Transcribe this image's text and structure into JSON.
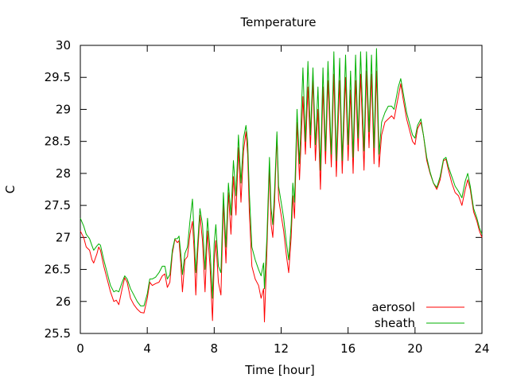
{
  "chart_data": {
    "type": "line",
    "title": "Temperature",
    "xlabel": "Time [hour]",
    "ylabel": "C",
    "xlim": [
      0,
      24
    ],
    "ylim": [
      25.5,
      30
    ],
    "xticks": [
      0,
      4,
      8,
      12,
      16,
      20,
      24
    ],
    "yticks": [
      25.5,
      26,
      26.5,
      27,
      27.5,
      28,
      28.5,
      29,
      29.5,
      30
    ],
    "xtick_labels": [
      "0",
      "4",
      "8",
      "12",
      "16",
      "20",
      "24"
    ],
    "ytick_labels": [
      "25.5",
      "26",
      "26.5",
      "27",
      "27.5",
      "28",
      "28.5",
      "29",
      "29.5",
      "30"
    ],
    "grid": false,
    "legend_position": "bottom-right",
    "series": [
      {
        "name": "aerosol",
        "color": "#ff0000",
        "points": [
          [
            0.0,
            27.1
          ],
          [
            0.2,
            27.0
          ],
          [
            0.35,
            26.85
          ],
          [
            0.55,
            26.8
          ],
          [
            0.7,
            26.65
          ],
          [
            0.8,
            26.6
          ],
          [
            1.0,
            26.75
          ],
          [
            1.1,
            26.85
          ],
          [
            1.2,
            26.8
          ],
          [
            1.4,
            26.55
          ],
          [
            1.6,
            26.35
          ],
          [
            1.8,
            26.15
          ],
          [
            2.0,
            26.0
          ],
          [
            2.15,
            26.02
          ],
          [
            2.3,
            25.95
          ],
          [
            2.5,
            26.2
          ],
          [
            2.65,
            26.37
          ],
          [
            2.8,
            26.3
          ],
          [
            3.0,
            26.05
          ],
          [
            3.2,
            25.95
          ],
          [
            3.4,
            25.88
          ],
          [
            3.6,
            25.83
          ],
          [
            3.8,
            25.82
          ],
          [
            4.0,
            26.05
          ],
          [
            4.15,
            26.3
          ],
          [
            4.3,
            26.25
          ],
          [
            4.5,
            26.28
          ],
          [
            4.7,
            26.3
          ],
          [
            4.9,
            26.4
          ],
          [
            5.05,
            26.43
          ],
          [
            5.2,
            26.22
          ],
          [
            5.35,
            26.3
          ],
          [
            5.5,
            26.75
          ],
          [
            5.65,
            26.97
          ],
          [
            5.8,
            26.92
          ],
          [
            5.9,
            26.95
          ],
          [
            6.0,
            26.6
          ],
          [
            6.1,
            26.15
          ],
          [
            6.25,
            26.65
          ],
          [
            6.4,
            26.7
          ],
          [
            6.55,
            27.05
          ],
          [
            6.7,
            27.25
          ],
          [
            6.8,
            26.8
          ],
          [
            6.9,
            26.1
          ],
          [
            7.0,
            26.7
          ],
          [
            7.15,
            27.35
          ],
          [
            7.3,
            26.95
          ],
          [
            7.45,
            26.15
          ],
          [
            7.6,
            27.1
          ],
          [
            7.75,
            26.55
          ],
          [
            7.9,
            25.7
          ],
          [
            8.0,
            26.6
          ],
          [
            8.1,
            26.95
          ],
          [
            8.25,
            26.3
          ],
          [
            8.4,
            26.1
          ],
          [
            8.55,
            27.55
          ],
          [
            8.7,
            26.6
          ],
          [
            8.85,
            27.7
          ],
          [
            9.0,
            27.05
          ],
          [
            9.15,
            27.95
          ],
          [
            9.3,
            27.35
          ],
          [
            9.45,
            28.4
          ],
          [
            9.6,
            27.55
          ],
          [
            9.75,
            28.35
          ],
          [
            9.9,
            28.65
          ],
          [
            10.0,
            28.3
          ],
          [
            10.1,
            27.4
          ],
          [
            10.25,
            26.55
          ],
          [
            10.45,
            26.35
          ],
          [
            10.65,
            26.25
          ],
          [
            10.8,
            26.05
          ],
          [
            10.95,
            26.2
          ],
          [
            11.0,
            25.68
          ],
          [
            11.15,
            26.8
          ],
          [
            11.3,
            28.1
          ],
          [
            11.4,
            27.2
          ],
          [
            11.5,
            27.0
          ],
          [
            11.6,
            27.5
          ],
          [
            11.75,
            28.6
          ],
          [
            11.85,
            27.6
          ],
          [
            12.0,
            27.35
          ],
          [
            12.15,
            27.1
          ],
          [
            12.3,
            26.75
          ],
          [
            12.45,
            26.45
          ],
          [
            12.6,
            27.0
          ],
          [
            12.7,
            27.65
          ],
          [
            12.8,
            27.3
          ],
          [
            12.95,
            28.8
          ],
          [
            13.1,
            27.9
          ],
          [
            13.3,
            29.2
          ],
          [
            13.45,
            28.3
          ],
          [
            13.6,
            29.35
          ],
          [
            13.75,
            28.4
          ],
          [
            13.9,
            29.45
          ],
          [
            14.05,
            28.2
          ],
          [
            14.2,
            29.0
          ],
          [
            14.35,
            27.75
          ],
          [
            14.5,
            29.35
          ],
          [
            14.65,
            28.15
          ],
          [
            14.8,
            29.45
          ],
          [
            15.0,
            28.1
          ],
          [
            15.15,
            29.55
          ],
          [
            15.3,
            27.95
          ],
          [
            15.5,
            29.45
          ],
          [
            15.65,
            28.0
          ],
          [
            15.85,
            29.5
          ],
          [
            16.0,
            28.2
          ],
          [
            16.15,
            29.3
          ],
          [
            16.3,
            28.0
          ],
          [
            16.45,
            29.45
          ],
          [
            16.6,
            28.35
          ],
          [
            16.75,
            29.55
          ],
          [
            16.95,
            28.05
          ],
          [
            17.1,
            29.6
          ],
          [
            17.25,
            28.4
          ],
          [
            17.4,
            29.55
          ],
          [
            17.55,
            28.15
          ],
          [
            17.7,
            29.6
          ],
          [
            17.85,
            28.1
          ],
          [
            18.0,
            28.6
          ],
          [
            18.2,
            28.8
          ],
          [
            18.4,
            28.85
          ],
          [
            18.6,
            28.9
          ],
          [
            18.75,
            28.85
          ],
          [
            19.0,
            29.2
          ],
          [
            19.15,
            29.4
          ],
          [
            19.3,
            29.15
          ],
          [
            19.5,
            28.85
          ],
          [
            19.7,
            28.65
          ],
          [
            19.85,
            28.5
          ],
          [
            20.0,
            28.45
          ],
          [
            20.15,
            28.7
          ],
          [
            20.35,
            28.8
          ],
          [
            20.5,
            28.6
          ],
          [
            20.7,
            28.2
          ],
          [
            20.9,
            28.0
          ],
          [
            21.1,
            27.85
          ],
          [
            21.3,
            27.75
          ],
          [
            21.5,
            27.9
          ],
          [
            21.7,
            28.2
          ],
          [
            21.85,
            28.22
          ],
          [
            22.0,
            28.05
          ],
          [
            22.2,
            27.85
          ],
          [
            22.4,
            27.7
          ],
          [
            22.6,
            27.65
          ],
          [
            22.8,
            27.5
          ],
          [
            23.0,
            27.75
          ],
          [
            23.15,
            27.9
          ],
          [
            23.3,
            27.75
          ],
          [
            23.5,
            27.4
          ],
          [
            23.7,
            27.25
          ],
          [
            23.85,
            27.1
          ],
          [
            24.0,
            27.0
          ]
        ]
      },
      {
        "name": "sheath",
        "color": "#00b000",
        "points": [
          [
            0.0,
            27.3
          ],
          [
            0.2,
            27.18
          ],
          [
            0.35,
            27.05
          ],
          [
            0.55,
            26.98
          ],
          [
            0.7,
            26.87
          ],
          [
            0.8,
            26.8
          ],
          [
            1.0,
            26.87
          ],
          [
            1.1,
            26.9
          ],
          [
            1.2,
            26.88
          ],
          [
            1.4,
            26.65
          ],
          [
            1.6,
            26.45
          ],
          [
            1.8,
            26.25
          ],
          [
            2.0,
            26.15
          ],
          [
            2.15,
            26.17
          ],
          [
            2.3,
            26.15
          ],
          [
            2.5,
            26.3
          ],
          [
            2.65,
            26.4
          ],
          [
            2.8,
            26.35
          ],
          [
            3.0,
            26.2
          ],
          [
            3.2,
            26.1
          ],
          [
            3.4,
            26.0
          ],
          [
            3.6,
            25.93
          ],
          [
            3.8,
            25.93
          ],
          [
            4.0,
            26.12
          ],
          [
            4.15,
            26.35
          ],
          [
            4.3,
            26.35
          ],
          [
            4.5,
            26.38
          ],
          [
            4.7,
            26.45
          ],
          [
            4.9,
            26.55
          ],
          [
            5.05,
            26.55
          ],
          [
            5.2,
            26.35
          ],
          [
            5.35,
            26.42
          ],
          [
            5.5,
            26.8
          ],
          [
            5.65,
            26.98
          ],
          [
            5.8,
            26.98
          ],
          [
            5.9,
            27.02
          ],
          [
            6.0,
            26.75
          ],
          [
            6.1,
            26.42
          ],
          [
            6.25,
            26.75
          ],
          [
            6.4,
            26.85
          ],
          [
            6.55,
            27.25
          ],
          [
            6.7,
            27.6
          ],
          [
            6.8,
            27.05
          ],
          [
            6.9,
            26.45
          ],
          [
            7.0,
            26.85
          ],
          [
            7.15,
            27.45
          ],
          [
            7.3,
            27.2
          ],
          [
            7.45,
            26.5
          ],
          [
            7.6,
            27.3
          ],
          [
            7.75,
            26.8
          ],
          [
            7.9,
            26.05
          ],
          [
            8.0,
            26.9
          ],
          [
            8.1,
            27.2
          ],
          [
            8.25,
            26.55
          ],
          [
            8.4,
            26.45
          ],
          [
            8.55,
            27.7
          ],
          [
            8.7,
            26.85
          ],
          [
            8.85,
            27.85
          ],
          [
            9.0,
            27.35
          ],
          [
            9.15,
            28.2
          ],
          [
            9.3,
            27.65
          ],
          [
            9.45,
            28.6
          ],
          [
            9.6,
            27.85
          ],
          [
            9.75,
            28.55
          ],
          [
            9.9,
            28.75
          ],
          [
            10.0,
            28.5
          ],
          [
            10.1,
            27.7
          ],
          [
            10.25,
            26.85
          ],
          [
            10.45,
            26.65
          ],
          [
            10.65,
            26.5
          ],
          [
            10.8,
            26.4
          ],
          [
            10.95,
            26.6
          ],
          [
            11.0,
            26.2
          ],
          [
            11.15,
            27.0
          ],
          [
            11.3,
            28.25
          ],
          [
            11.4,
            27.45
          ],
          [
            11.5,
            27.2
          ],
          [
            11.6,
            27.7
          ],
          [
            11.75,
            28.65
          ],
          [
            11.85,
            27.8
          ],
          [
            12.0,
            27.55
          ],
          [
            12.15,
            27.3
          ],
          [
            12.3,
            26.95
          ],
          [
            12.45,
            26.65
          ],
          [
            12.6,
            27.2
          ],
          [
            12.7,
            27.85
          ],
          [
            12.8,
            27.55
          ],
          [
            12.95,
            29.0
          ],
          [
            13.1,
            28.15
          ],
          [
            13.3,
            29.65
          ],
          [
            13.45,
            28.5
          ],
          [
            13.6,
            29.75
          ],
          [
            13.75,
            28.6
          ],
          [
            13.9,
            29.65
          ],
          [
            14.05,
            28.45
          ],
          [
            14.2,
            29.35
          ],
          [
            14.35,
            28.05
          ],
          [
            14.5,
            29.65
          ],
          [
            14.65,
            28.35
          ],
          [
            14.8,
            29.75
          ],
          [
            15.0,
            28.3
          ],
          [
            15.15,
            29.9
          ],
          [
            15.3,
            28.2
          ],
          [
            15.5,
            29.8
          ],
          [
            15.65,
            28.2
          ],
          [
            15.85,
            29.85
          ],
          [
            16.0,
            28.45
          ],
          [
            16.15,
            29.6
          ],
          [
            16.3,
            28.25
          ],
          [
            16.45,
            29.85
          ],
          [
            16.6,
            28.55
          ],
          [
            16.75,
            29.9
          ],
          [
            16.95,
            28.35
          ],
          [
            17.1,
            29.9
          ],
          [
            17.25,
            28.65
          ],
          [
            17.4,
            29.85
          ],
          [
            17.55,
            28.4
          ],
          [
            17.7,
            29.95
          ],
          [
            17.85,
            28.3
          ],
          [
            18.0,
            28.8
          ],
          [
            18.2,
            28.95
          ],
          [
            18.4,
            29.05
          ],
          [
            18.6,
            29.05
          ],
          [
            18.75,
            29.0
          ],
          [
            19.0,
            29.35
          ],
          [
            19.15,
            29.48
          ],
          [
            19.3,
            29.25
          ],
          [
            19.5,
            28.95
          ],
          [
            19.7,
            28.75
          ],
          [
            19.85,
            28.6
          ],
          [
            20.0,
            28.55
          ],
          [
            20.15,
            28.75
          ],
          [
            20.35,
            28.85
          ],
          [
            20.5,
            28.6
          ],
          [
            20.7,
            28.25
          ],
          [
            20.9,
            28.02
          ],
          [
            21.1,
            27.85
          ],
          [
            21.3,
            27.78
          ],
          [
            21.5,
            27.95
          ],
          [
            21.7,
            28.22
          ],
          [
            21.85,
            28.25
          ],
          [
            22.0,
            28.1
          ],
          [
            22.2,
            27.95
          ],
          [
            22.4,
            27.8
          ],
          [
            22.6,
            27.72
          ],
          [
            22.8,
            27.62
          ],
          [
            23.0,
            27.88
          ],
          [
            23.15,
            28.0
          ],
          [
            23.3,
            27.8
          ],
          [
            23.5,
            27.45
          ],
          [
            23.7,
            27.3
          ],
          [
            23.85,
            27.15
          ],
          [
            24.0,
            27.05
          ]
        ]
      }
    ]
  }
}
